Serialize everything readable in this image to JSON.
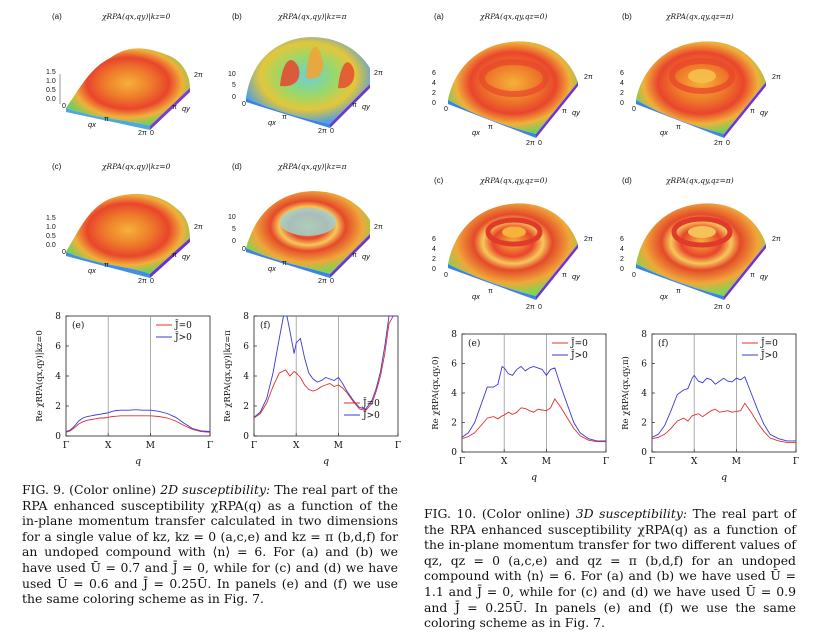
{
  "fig9": {
    "panel_labels": [
      "(a)",
      "(b)",
      "(c)",
      "(d)",
      "(e)",
      "(f)"
    ],
    "surface_titles": [
      "χRPA(qx,qy)|kz=0",
      "χRPA(qx,qy)|kz=π",
      "χRPA(qx,qy)|kz=0",
      "χRPA(qx,qy)|kz=π"
    ],
    "surface_axes": {
      "a": {
        "z_ticks": [
          "1.5",
          "1.0",
          "0.5",
          "0.0"
        ],
        "x_ticks": [
          "0",
          "π",
          "2π"
        ],
        "y_ticks": [
          "0",
          "π",
          "2π"
        ],
        "x_label": "qx",
        "y_label": "qy"
      },
      "b": {
        "z_ticks": [
          "10",
          "5",
          "0"
        ],
        "x_ticks": [
          "0",
          "π",
          "2π"
        ],
        "y_ticks": [
          "0",
          "π",
          "2π"
        ],
        "x_label": "qx",
        "y_label": "qy"
      },
      "c": {
        "z_ticks": [
          "1.5",
          "1.0",
          "0.5",
          "0.0"
        ],
        "x_ticks": [
          "0",
          "π",
          "2π"
        ],
        "y_ticks": [
          "0",
          "π",
          "2π"
        ],
        "x_label": "qx",
        "y_label": "qy"
      },
      "d": {
        "z_ticks": [
          "10",
          "5",
          "0"
        ],
        "x_ticks": [
          "0",
          "π",
          "2π"
        ],
        "y_ticks": [
          "0",
          "π",
          "2π"
        ],
        "x_label": "qx",
        "y_label": "qy"
      }
    },
    "caption": {
      "label": "FIG. 9.",
      "suffix": "(Color online)",
      "title": "2D susceptibility:",
      "body": "The real part of the RPA enhanced susceptibility χRPA(q) as a function of the in-plane momentum transfer calculated in two dimensions for a single value of kz, kz = 0 (a,c,e) and kz = π (b,d,f) for an undoped compound with ⟨n⟩ = 6. For (a) and (b) we have used Ū = 0.7 and J̄ = 0, while for (c) and (d) we have used Ū = 0.6 and J̄ = 0.25Ū. In panels (e) and (f) we use the same coloring scheme as in Fig. 7."
    }
  },
  "fig10": {
    "panel_labels": [
      "(a)",
      "(b)",
      "(c)",
      "(d)",
      "(e)",
      "(f)"
    ],
    "surface_titles": [
      "χRPA(qx,qy,qz=0)",
      "χRPA(qx,qy,qz=π)",
      "χRPA(qx,qy,qz=0)",
      "χRPA(qx,qy,qz=π)"
    ],
    "surface_axes": {
      "a": {
        "z_ticks": [
          "6",
          "4",
          "2",
          "0"
        ],
        "x_ticks": [
          "0",
          "π",
          "2π"
        ],
        "y_ticks": [
          "0",
          "π",
          "2π"
        ],
        "x_label": "qx",
        "y_label": "qy"
      },
      "b": {
        "z_ticks": [
          "6",
          "4",
          "2",
          "0"
        ],
        "x_ticks": [
          "0",
          "π",
          "2π"
        ],
        "y_ticks": [
          "0",
          "π",
          "2π"
        ],
        "x_label": "qx",
        "y_label": "qy"
      },
      "c": {
        "z_ticks": [
          "6",
          "4",
          "2",
          "0"
        ],
        "x_ticks": [
          "0",
          "π",
          "2π"
        ],
        "y_ticks": [
          "0",
          "π",
          "2π"
        ],
        "x_label": "qx",
        "y_label": "qy"
      },
      "d": {
        "z_ticks": [
          "6",
          "4",
          "2",
          "0"
        ],
        "x_ticks": [
          "0",
          "π",
          "2π"
        ],
        "y_ticks": [
          "0",
          "π",
          "2π"
        ],
        "x_label": "qx",
        "y_label": "qy"
      }
    },
    "caption": {
      "label": "FIG. 10.",
      "suffix": "(Color online)",
      "title": "3D susceptibility:",
      "body": "The real part of the RPA enhanced susceptibility χRPA(q) as a function of the in-plane momentum transfer for two different values of qz, qz = 0 (a,c,e) and qz = π (b,d,f) for an undoped compound with ⟨n⟩ = 6. For (a) and (b) we have used Ū = 1.1 and J̄ = 0, while for (c) and (d) we have used Ū = 0.9 and J̄ = 0.25Ū. In panels (e) and (f) we use the same coloring scheme as in Fig. 7."
    }
  },
  "colors": {
    "j0": "#e0302e",
    "jpos": "#3a3ad8",
    "vline": "#8a8a8a"
  },
  "chart_data": [
    {
      "id": "fig9e",
      "type": "line",
      "panel": "(e)",
      "ylabel": "Re χRPA(qx,qy)|kz=0",
      "xlabel": "q",
      "x_ticks": [
        "Γ",
        "X",
        "M",
        "Γ"
      ],
      "ylim": [
        0,
        8
      ],
      "y_ticks": [
        0,
        2,
        4,
        6,
        8
      ],
      "legend": [
        "J̄=0",
        "J̄>0"
      ],
      "legend_position": "top-right",
      "series": [
        {
          "name": "J̄=0",
          "color": "#e0302e",
          "x": [
            0,
            0.1,
            0.2,
            0.3,
            0.4,
            0.5,
            0.6,
            0.7,
            0.8,
            0.9,
            1.0,
            1.1,
            1.2,
            1.3,
            1.4,
            1.5,
            1.6,
            1.7,
            1.8,
            1.9,
            2.0,
            2.2,
            2.4,
            2.6,
            2.8,
            3.0,
            3.2,
            3.414
          ],
          "y": [
            0.25,
            0.35,
            0.55,
            0.8,
            0.95,
            1.05,
            1.1,
            1.15,
            1.2,
            1.2,
            1.25,
            1.3,
            1.32,
            1.35,
            1.35,
            1.35,
            1.35,
            1.35,
            1.35,
            1.35,
            1.35,
            1.3,
            1.2,
            1.0,
            0.7,
            0.45,
            0.3,
            0.25
          ]
        },
        {
          "name": "J̄>0",
          "color": "#3a3ad8",
          "x": [
            0,
            0.1,
            0.2,
            0.3,
            0.4,
            0.5,
            0.6,
            0.7,
            0.8,
            0.9,
            1.0,
            1.1,
            1.2,
            1.3,
            1.4,
            1.5,
            1.6,
            1.7,
            1.8,
            1.9,
            2.0,
            2.2,
            2.4,
            2.6,
            2.8,
            3.0,
            3.2,
            3.414
          ],
          "y": [
            0.3,
            0.4,
            0.65,
            1.0,
            1.2,
            1.3,
            1.35,
            1.4,
            1.45,
            1.5,
            1.55,
            1.65,
            1.7,
            1.72,
            1.72,
            1.72,
            1.75,
            1.75,
            1.72,
            1.72,
            1.72,
            1.65,
            1.5,
            1.25,
            0.85,
            0.5,
            0.35,
            0.3
          ]
        }
      ]
    },
    {
      "id": "fig9f",
      "type": "line",
      "panel": "(f)",
      "ylabel": "Re χRPA(qx,qy)|kz=π",
      "xlabel": "q",
      "x_ticks": [
        "Γ",
        "X",
        "M",
        "Γ"
      ],
      "ylim": [
        0,
        8
      ],
      "y_ticks": [
        0,
        2,
        4,
        6,
        8
      ],
      "legend": [
        "J̄=0",
        "J̄>0"
      ],
      "legend_position": "bottom-right",
      "series": [
        {
          "name": "J̄=0",
          "color": "#e0302e",
          "x": [
            0,
            0.15,
            0.3,
            0.45,
            0.6,
            0.75,
            0.85,
            0.95,
            1.0,
            1.1,
            1.2,
            1.3,
            1.4,
            1.5,
            1.6,
            1.7,
            1.8,
            1.9,
            2.0,
            2.1,
            2.2,
            2.35,
            2.5,
            2.65,
            2.8,
            2.9,
            3.0,
            3.1,
            3.2,
            3.3,
            3.414
          ],
          "y": [
            1.2,
            1.5,
            2.2,
            3.3,
            4.2,
            4.4,
            4.0,
            4.3,
            4.2,
            3.9,
            3.4,
            3.1,
            3.0,
            3.1,
            3.3,
            3.4,
            3.5,
            3.3,
            3.4,
            3.2,
            2.9,
            2.3,
            1.8,
            1.7,
            2.2,
            3.0,
            4.0,
            5.5,
            7.5,
            8.0,
            8.0
          ]
        },
        {
          "name": "J̄>0",
          "color": "#3a3ad8",
          "x": [
            0,
            0.15,
            0.3,
            0.45,
            0.6,
            0.7,
            0.78,
            0.85,
            0.95,
            1.0,
            1.1,
            1.2,
            1.3,
            1.4,
            1.5,
            1.6,
            1.7,
            1.8,
            1.9,
            2.0,
            2.1,
            2.2,
            2.35,
            2.5,
            2.65,
            2.8,
            2.9,
            3.0,
            3.1,
            3.2,
            3.3,
            3.414
          ],
          "y": [
            1.25,
            1.6,
            2.5,
            4.2,
            6.5,
            8.0,
            8.0,
            7.0,
            5.5,
            6.2,
            6.5,
            5.2,
            4.2,
            3.8,
            3.6,
            3.7,
            3.9,
            3.8,
            3.7,
            3.9,
            3.5,
            3.0,
            2.4,
            1.9,
            1.8,
            2.4,
            3.2,
            4.3,
            6.0,
            8.0,
            8.0,
            8.0
          ]
        }
      ]
    },
    {
      "id": "fig10e",
      "type": "line",
      "panel": "(e)",
      "ylabel": "Re χRPA(qx,qy,0)",
      "xlabel": "q",
      "x_ticks": [
        "Γ",
        "X",
        "M",
        "Γ"
      ],
      "ylim": [
        0,
        8
      ],
      "y_ticks": [
        0,
        2,
        4,
        6,
        8
      ],
      "legend": [
        "J̄=0",
        "J̄>0"
      ],
      "legend_position": "top-right",
      "series": [
        {
          "name": "J̄=0",
          "color": "#e0302e",
          "x": [
            0,
            0.15,
            0.3,
            0.45,
            0.6,
            0.75,
            0.85,
            0.95,
            1.0,
            1.1,
            1.2,
            1.3,
            1.4,
            1.5,
            1.6,
            1.7,
            1.8,
            1.9,
            2.0,
            2.1,
            2.2,
            2.35,
            2.5,
            2.65,
            2.8,
            3.0,
            3.2,
            3.414
          ],
          "y": [
            0.9,
            1.05,
            1.3,
            1.8,
            2.3,
            2.4,
            2.25,
            2.45,
            2.5,
            2.7,
            2.55,
            2.7,
            3.0,
            2.95,
            2.8,
            2.7,
            2.9,
            2.85,
            2.8,
            3.0,
            3.6,
            3.0,
            2.3,
            1.6,
            1.1,
            0.8,
            0.7,
            0.7
          ]
        },
        {
          "name": "J̄>0",
          "color": "#3a3ad8",
          "x": [
            0,
            0.15,
            0.3,
            0.45,
            0.6,
            0.75,
            0.85,
            0.95,
            1.0,
            1.1,
            1.2,
            1.3,
            1.4,
            1.5,
            1.6,
            1.7,
            1.8,
            1.9,
            2.0,
            2.1,
            2.2,
            2.35,
            2.5,
            2.65,
            2.8,
            3.0,
            3.2,
            3.414
          ],
          "y": [
            1.0,
            1.3,
            2.0,
            3.2,
            4.4,
            4.4,
            4.6,
            5.8,
            5.7,
            5.3,
            5.2,
            5.6,
            5.8,
            5.5,
            5.7,
            5.8,
            5.7,
            5.6,
            5.2,
            5.6,
            5.7,
            4.4,
            3.2,
            2.0,
            1.3,
            0.9,
            0.75,
            0.75
          ]
        }
      ]
    },
    {
      "id": "fig10f",
      "type": "line",
      "panel": "(f)",
      "ylabel": "Re χRPA(qx,qy,π)",
      "xlabel": "q",
      "x_ticks": [
        "Γ",
        "X",
        "M",
        "Γ"
      ],
      "ylim": [
        0,
        8
      ],
      "y_ticks": [
        0,
        2,
        4,
        6,
        8
      ],
      "legend": [
        "J̄=0",
        "J̄>0"
      ],
      "legend_position": "top-right",
      "series": [
        {
          "name": "J̄=0",
          "color": "#e0302e",
          "x": [
            0,
            0.15,
            0.3,
            0.45,
            0.6,
            0.75,
            0.85,
            0.95,
            1.0,
            1.1,
            1.2,
            1.3,
            1.4,
            1.5,
            1.6,
            1.7,
            1.8,
            1.9,
            2.0,
            2.1,
            2.2,
            2.35,
            2.5,
            2.65,
            2.8,
            3.0,
            3.2,
            3.414
          ],
          "y": [
            0.9,
            1.0,
            1.2,
            1.6,
            2.1,
            2.3,
            2.1,
            2.45,
            2.5,
            2.6,
            2.4,
            2.6,
            2.8,
            2.9,
            2.7,
            2.75,
            2.8,
            2.7,
            2.75,
            2.8,
            3.3,
            2.7,
            2.0,
            1.4,
            0.95,
            0.75,
            0.65,
            0.65
          ]
        },
        {
          "name": "J̄>0",
          "color": "#3a3ad8",
          "x": [
            0,
            0.15,
            0.3,
            0.45,
            0.6,
            0.75,
            0.85,
            0.95,
            1.0,
            1.1,
            1.2,
            1.3,
            1.4,
            1.5,
            1.6,
            1.7,
            1.8,
            1.9,
            2.0,
            2.1,
            2.2,
            2.35,
            2.5,
            2.65,
            2.8,
            3.0,
            3.2,
            3.414
          ],
          "y": [
            1.0,
            1.2,
            1.8,
            2.8,
            3.9,
            4.2,
            4.3,
            5.0,
            5.2,
            4.8,
            4.7,
            5.0,
            4.9,
            4.6,
            4.8,
            5.0,
            4.8,
            4.75,
            5.0,
            4.9,
            5.1,
            4.0,
            2.9,
            1.9,
            1.2,
            0.9,
            0.75,
            0.75
          ]
        }
      ]
    }
  ]
}
